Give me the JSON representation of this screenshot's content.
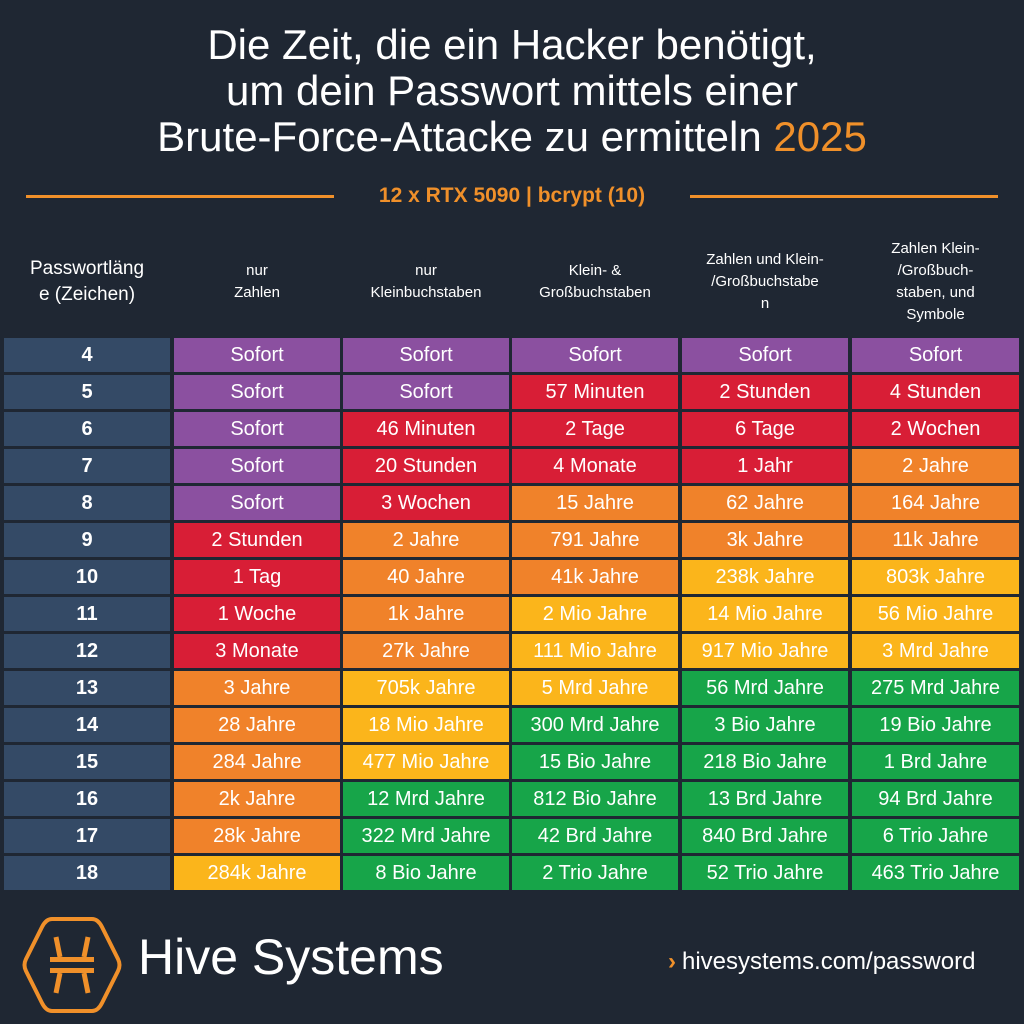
{
  "title": {
    "line1": "Die Zeit, die ein Hacker benötigt,",
    "line2": "um dein Passwort mittels einer",
    "line3": "Brute-Force-Attacke zu ermitteln",
    "year": "2025"
  },
  "subtitle": "12 x RTX 5090 | bcrypt (10)",
  "headers": [
    "Passwortlänge (Zeichen)",
    "nur Zahlen",
    "nur Kleinbuchstaben",
    "Klein- & Großbuchstaben",
    "Zahlen und Klein-/Großbuchstaben",
    "Zahlen Klein-/Großbuch-staben, und Symbole"
  ],
  "colors": {
    "p": "#8b50a0",
    "r": "#d81e36",
    "o": "#f0822a",
    "y": "#fbb51b",
    "g": "#17a549"
  },
  "rows": [
    {
      "len": "4",
      "cells": [
        "Sofort",
        "Sofort",
        "Sofort",
        "Sofort",
        "Sofort"
      ],
      "c": "ppppp"
    },
    {
      "len": "5",
      "cells": [
        "Sofort",
        "Sofort",
        "57 Minuten",
        "2 Stunden",
        "4 Stunden"
      ],
      "c": "pprrr"
    },
    {
      "len": "6",
      "cells": [
        "Sofort",
        "46 Minuten",
        "2 Tage",
        "6 Tage",
        "2 Wochen"
      ],
      "c": "prrrr"
    },
    {
      "len": "7",
      "cells": [
        "Sofort",
        "20 Stunden",
        "4 Monate",
        "1 Jahr",
        "2 Jahre"
      ],
      "c": "prrro"
    },
    {
      "len": "8",
      "cells": [
        "Sofort",
        "3 Wochen",
        "15 Jahre",
        "62 Jahre",
        "164 Jahre"
      ],
      "c": "prooo"
    },
    {
      "len": "9",
      "cells": [
        "2 Stunden",
        "2 Jahre",
        "791 Jahre",
        "3k Jahre",
        "11k Jahre"
      ],
      "c": "roooo"
    },
    {
      "len": "10",
      "cells": [
        "1 Tag",
        "40 Jahre",
        "41k Jahre",
        "238k Jahre",
        "803k Jahre"
      ],
      "c": "rooyy"
    },
    {
      "len": "11",
      "cells": [
        "1 Woche",
        "1k Jahre",
        "2 Mio Jahre",
        "14 Mio Jahre",
        "56 Mio Jahre"
      ],
      "c": "royyy"
    },
    {
      "len": "12",
      "cells": [
        "3 Monate",
        "27k Jahre",
        "111 Mio Jahre",
        "917 Mio Jahre",
        "3 Mrd Jahre"
      ],
      "c": "royyy"
    },
    {
      "len": "13",
      "cells": [
        "3 Jahre",
        "705k Jahre",
        "5 Mrd Jahre",
        "56 Mrd Jahre",
        "275 Mrd Jahre"
      ],
      "c": "oyygg"
    },
    {
      "len": "14",
      "cells": [
        "28 Jahre",
        "18 Mio Jahre",
        "300 Mrd Jahre",
        "3 Bio Jahre",
        "19 Bio Jahre"
      ],
      "c": "oyggg"
    },
    {
      "len": "15",
      "cells": [
        "284 Jahre",
        "477 Mio Jahre",
        "15 Bio Jahre",
        "218 Bio Jahre",
        "1 Brd Jahre"
      ],
      "c": "oyggg"
    },
    {
      "len": "16",
      "cells": [
        "2k Jahre",
        "12 Mrd Jahre",
        "812 Bio Jahre",
        "13 Brd Jahre",
        "94 Brd Jahre"
      ],
      "c": "ogggg"
    },
    {
      "len": "17",
      "cells": [
        "28k Jahre",
        "322 Mrd Jahre",
        "42 Brd Jahre",
        "840 Brd Jahre",
        "6 Trio Jahre"
      ],
      "c": "ogggg"
    },
    {
      "len": "18",
      "cells": [
        "284k Jahre",
        "8 Bio Jahre",
        "2 Trio Jahre",
        "52 Trio Jahre",
        "463 Trio Jahre"
      ],
      "c": "ygggg"
    }
  ],
  "footer": {
    "brand": "Hive Systems",
    "url": "hivesystems.com/password"
  }
}
